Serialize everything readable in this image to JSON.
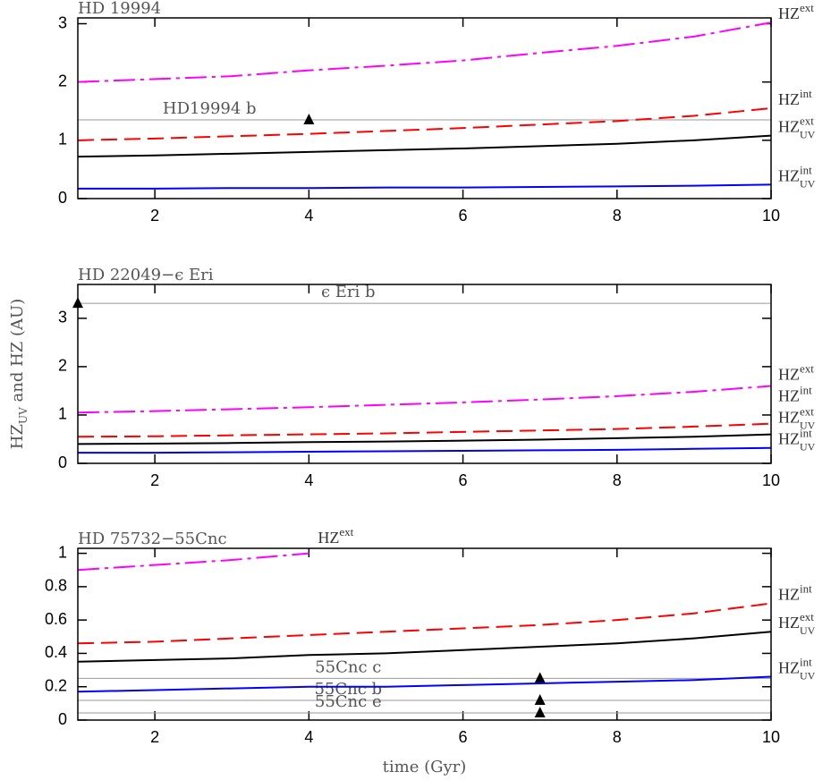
{
  "chart_data": [
    {
      "type": "line",
      "title": "HD 19994",
      "x": [
        1,
        2,
        3,
        4,
        5,
        6,
        7,
        8,
        9,
        10
      ],
      "xlim": [
        1,
        10
      ],
      "xticks": [
        2,
        4,
        6,
        8,
        10
      ],
      "ylim": [
        0,
        3.1
      ],
      "yticks": [
        0,
        1,
        2,
        3
      ],
      "series": [
        {
          "name": "HZ",
          "sup": "ext",
          "color": "#ff00ff",
          "values": [
            2.0,
            2.05,
            2.1,
            2.2,
            2.28,
            2.37,
            2.5,
            2.62,
            2.78,
            3.02
          ]
        },
        {
          "name": "HZ",
          "sup": "int",
          "color": "#ff0000",
          "values": [
            1.0,
            1.03,
            1.07,
            1.11,
            1.16,
            1.21,
            1.27,
            1.33,
            1.42,
            1.55
          ]
        },
        {
          "name": "HZ",
          "sup": "ext",
          "sub": "UV",
          "color": "#000000",
          "values": [
            0.72,
            0.74,
            0.77,
            0.8,
            0.83,
            0.86,
            0.9,
            0.94,
            1.0,
            1.08
          ]
        },
        {
          "name": "HZ",
          "sup": "int",
          "sub": "UV",
          "color": "#0000ff",
          "values": [
            0.17,
            0.17,
            0.18,
            0.18,
            0.19,
            0.19,
            0.2,
            0.21,
            0.22,
            0.24
          ]
        }
      ],
      "planets": [
        {
          "name": "HD19994 b",
          "x": 4,
          "y": 1.35
        }
      ]
    },
    {
      "type": "line",
      "title": "HD 22049−ϵ Eri",
      "x": [
        1,
        2,
        3,
        4,
        5,
        6,
        7,
        8,
        9,
        10
      ],
      "xlim": [
        1,
        10
      ],
      "xticks": [
        2,
        4,
        6,
        8,
        10
      ],
      "ylim": [
        0,
        3.7
      ],
      "yticks": [
        0,
        1,
        2,
        3
      ],
      "ylabel": {
        "name": "HZ",
        "sub": "UV",
        "rest": " and HZ (AU)"
      },
      "series": [
        {
          "name": "HZ",
          "sup": "ext",
          "color": "#ff00ff",
          "values": [
            1.05,
            1.08,
            1.12,
            1.16,
            1.21,
            1.26,
            1.32,
            1.39,
            1.48,
            1.6
          ]
        },
        {
          "name": "HZ",
          "sup": "int",
          "color": "#ff0000",
          "values": [
            0.55,
            0.56,
            0.58,
            0.6,
            0.62,
            0.65,
            0.68,
            0.71,
            0.76,
            0.82
          ]
        },
        {
          "name": "HZ",
          "sup": "ext",
          "sub": "UV",
          "color": "#000000",
          "values": [
            0.4,
            0.41,
            0.42,
            0.44,
            0.45,
            0.47,
            0.49,
            0.52,
            0.55,
            0.6
          ]
        },
        {
          "name": "HZ",
          "sup": "int",
          "sub": "UV",
          "color": "#0000ff",
          "values": [
            0.22,
            0.22,
            0.23,
            0.24,
            0.25,
            0.26,
            0.27,
            0.28,
            0.3,
            0.32
          ]
        }
      ],
      "planets": [
        {
          "name": "ϵ Eri b",
          "x": 1,
          "y": 3.31
        }
      ]
    },
    {
      "type": "line",
      "title": "HD 75732−55Cnc",
      "x": [
        1,
        2,
        3,
        4,
        5,
        6,
        7,
        8,
        9,
        10
      ],
      "xlim": [
        1,
        10
      ],
      "xticks": [
        2,
        4,
        6,
        8,
        10
      ],
      "ylim": [
        0,
        1.03
      ],
      "yticks": [
        0,
        0.2,
        0.4,
        0.6,
        0.8,
        1
      ],
      "xlabel": "time (Gyr)",
      "series": [
        {
          "name": "HZ",
          "sup": "ext",
          "color": "#ff00ff",
          "values": [
            0.9,
            0.93,
            0.96,
            1.0,
            null,
            null,
            null,
            null,
            null,
            null
          ]
        },
        {
          "name": "HZ",
          "sup": "int",
          "color": "#ff0000",
          "values": [
            0.46,
            0.47,
            0.49,
            0.51,
            0.53,
            0.55,
            0.57,
            0.6,
            0.64,
            0.7
          ]
        },
        {
          "name": "HZ",
          "sup": "ext",
          "sub": "UV",
          "color": "#000000",
          "values": [
            0.35,
            0.36,
            0.37,
            0.39,
            0.4,
            0.42,
            0.44,
            0.46,
            0.49,
            0.53
          ]
        },
        {
          "name": "HZ",
          "sup": "int",
          "sub": "UV",
          "color": "#0000ff",
          "values": [
            0.17,
            0.18,
            0.19,
            0.2,
            0.2,
            0.21,
            0.22,
            0.23,
            0.24,
            0.26
          ]
        }
      ],
      "planets": [
        {
          "name": "55Cnc c",
          "x": 7,
          "y": 0.25
        },
        {
          "name": "55Cnc b",
          "x": 7,
          "y": 0.118
        },
        {
          "name": "55Cnc e",
          "x": 7,
          "y": 0.043
        }
      ]
    }
  ]
}
